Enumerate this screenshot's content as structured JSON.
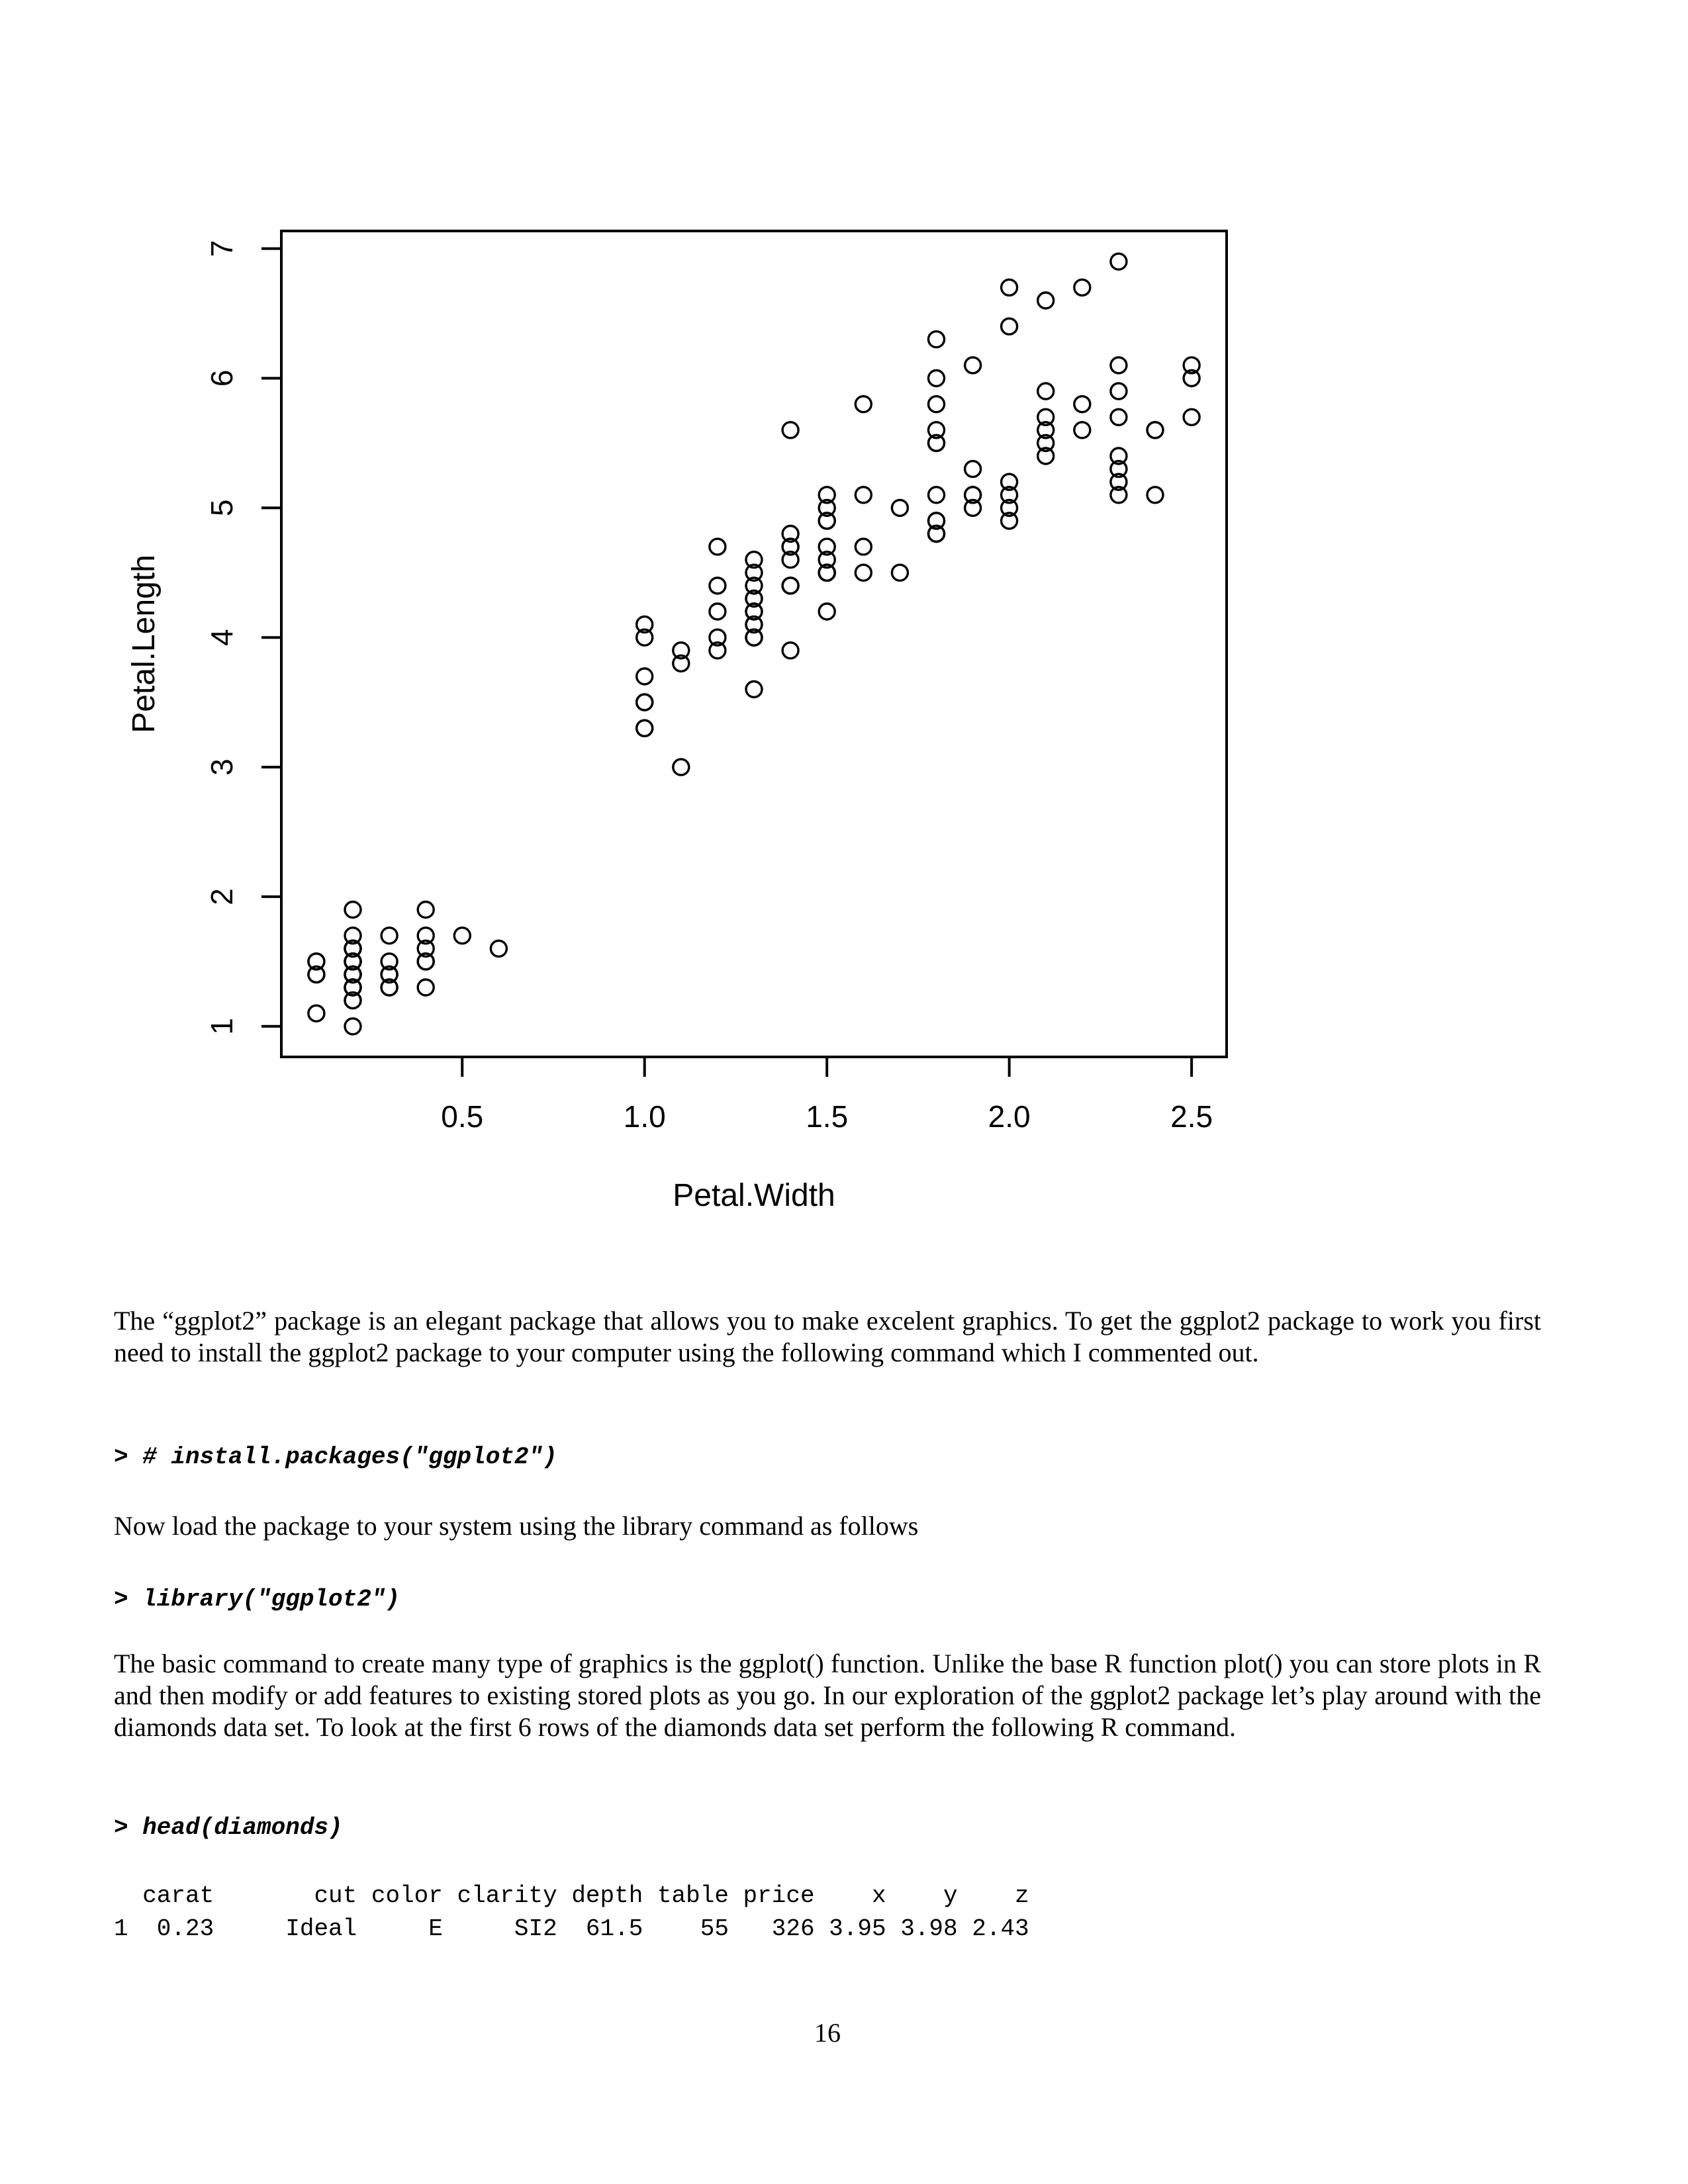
{
  "page": {
    "number": "16",
    "background": "#ffffff",
    "text_color": "#000000"
  },
  "chart_data": {
    "type": "scatter",
    "title": "",
    "xlabel": "Petal.Width",
    "ylabel": "Petal.Length",
    "x_ticks": [
      0.5,
      1.0,
      1.5,
      2.0,
      2.5
    ],
    "x_tick_labels": [
      "0.5",
      "1.0",
      "1.5",
      "2.0",
      "2.5"
    ],
    "y_ticks": [
      1,
      2,
      3,
      4,
      5,
      6,
      7
    ],
    "y_tick_labels": [
      "1",
      "2",
      "3",
      "4",
      "5",
      "6",
      "7"
    ],
    "xlim": [
      0.004,
      2.596
    ],
    "ylim": [
      0.764,
      7.136
    ],
    "grid": "off",
    "legend": "none",
    "marker": "open-circle",
    "point_color": "#000000",
    "points": [
      [
        0.2,
        1.4
      ],
      [
        0.2,
        1.4
      ],
      [
        0.2,
        1.3
      ],
      [
        0.2,
        1.5
      ],
      [
        0.2,
        1.4
      ],
      [
        0.4,
        1.7
      ],
      [
        0.3,
        1.4
      ],
      [
        0.2,
        1.5
      ],
      [
        0.2,
        1.4
      ],
      [
        0.1,
        1.5
      ],
      [
        0.2,
        1.5
      ],
      [
        0.2,
        1.6
      ],
      [
        0.1,
        1.4
      ],
      [
        0.1,
        1.1
      ],
      [
        0.2,
        1.2
      ],
      [
        0.4,
        1.5
      ],
      [
        0.4,
        1.3
      ],
      [
        0.3,
        1.4
      ],
      [
        0.3,
        1.7
      ],
      [
        0.3,
        1.5
      ],
      [
        0.2,
        1.7
      ],
      [
        0.4,
        1.5
      ],
      [
        0.2,
        1.0
      ],
      [
        0.5,
        1.7
      ],
      [
        0.2,
        1.9
      ],
      [
        0.2,
        1.6
      ],
      [
        0.4,
        1.6
      ],
      [
        0.2,
        1.5
      ],
      [
        0.2,
        1.4
      ],
      [
        0.2,
        1.6
      ],
      [
        0.2,
        1.6
      ],
      [
        0.4,
        1.5
      ],
      [
        0.1,
        1.5
      ],
      [
        0.2,
        1.4
      ],
      [
        0.2,
        1.5
      ],
      [
        0.2,
        1.2
      ],
      [
        0.2,
        1.3
      ],
      [
        0.1,
        1.4
      ],
      [
        0.2,
        1.3
      ],
      [
        0.2,
        1.5
      ],
      [
        0.3,
        1.3
      ],
      [
        0.3,
        1.3
      ],
      [
        0.2,
        1.3
      ],
      [
        0.6,
        1.6
      ],
      [
        0.4,
        1.9
      ],
      [
        0.3,
        1.4
      ],
      [
        0.2,
        1.6
      ],
      [
        0.2,
        1.4
      ],
      [
        0.2,
        1.5
      ],
      [
        0.2,
        1.4
      ],
      [
        1.4,
        4.7
      ],
      [
        1.5,
        4.5
      ],
      [
        1.5,
        4.9
      ],
      [
        1.3,
        4.0
      ],
      [
        1.5,
        4.6
      ],
      [
        1.3,
        4.5
      ],
      [
        1.6,
        4.7
      ],
      [
        1.0,
        3.3
      ],
      [
        1.3,
        4.6
      ],
      [
        1.4,
        3.9
      ],
      [
        1.0,
        3.5
      ],
      [
        1.5,
        4.2
      ],
      [
        1.0,
        4.0
      ],
      [
        1.4,
        4.7
      ],
      [
        1.3,
        3.6
      ],
      [
        1.4,
        4.4
      ],
      [
        1.5,
        4.5
      ],
      [
        1.0,
        4.1
      ],
      [
        1.5,
        4.5
      ],
      [
        1.1,
        3.9
      ],
      [
        1.8,
        4.8
      ],
      [
        1.3,
        4.0
      ],
      [
        1.5,
        4.9
      ],
      [
        1.2,
        4.7
      ],
      [
        1.3,
        4.3
      ],
      [
        1.4,
        4.4
      ],
      [
        1.4,
        4.8
      ],
      [
        1.7,
        5.0
      ],
      [
        1.5,
        4.5
      ],
      [
        1.0,
        3.5
      ],
      [
        1.1,
        3.8
      ],
      [
        1.0,
        3.7
      ],
      [
        1.2,
        3.9
      ],
      [
        1.6,
        5.1
      ],
      [
        1.5,
        4.5
      ],
      [
        1.6,
        4.5
      ],
      [
        1.5,
        4.7
      ],
      [
        1.3,
        4.4
      ],
      [
        1.3,
        4.1
      ],
      [
        1.3,
        4.0
      ],
      [
        1.2,
        4.4
      ],
      [
        1.4,
        4.6
      ],
      [
        1.2,
        4.0
      ],
      [
        1.0,
        3.3
      ],
      [
        1.3,
        4.2
      ],
      [
        1.2,
        4.2
      ],
      [
        1.3,
        4.2
      ],
      [
        1.3,
        4.3
      ],
      [
        1.1,
        3.0
      ],
      [
        1.3,
        4.1
      ],
      [
        2.5,
        6.0
      ],
      [
        1.9,
        5.1
      ],
      [
        2.1,
        5.9
      ],
      [
        1.8,
        5.6
      ],
      [
        2.2,
        5.8
      ],
      [
        2.1,
        6.6
      ],
      [
        1.7,
        4.5
      ],
      [
        1.8,
        6.3
      ],
      [
        1.8,
        5.8
      ],
      [
        2.5,
        6.1
      ],
      [
        2.0,
        5.1
      ],
      [
        1.9,
        5.3
      ],
      [
        2.1,
        5.5
      ],
      [
        2.0,
        5.0
      ],
      [
        2.4,
        5.1
      ],
      [
        2.3,
        5.3
      ],
      [
        1.8,
        5.5
      ],
      [
        2.2,
        6.7
      ],
      [
        2.3,
        6.9
      ],
      [
        1.5,
        5.0
      ],
      [
        2.3,
        5.7
      ],
      [
        2.0,
        4.9
      ],
      [
        2.0,
        6.7
      ],
      [
        1.8,
        4.9
      ],
      [
        2.1,
        5.7
      ],
      [
        1.8,
        6.0
      ],
      [
        1.8,
        4.8
      ],
      [
        1.8,
        4.9
      ],
      [
        2.1,
        5.6
      ],
      [
        1.6,
        5.8
      ],
      [
        1.9,
        6.1
      ],
      [
        2.0,
        6.4
      ],
      [
        2.2,
        5.6
      ],
      [
        1.5,
        5.1
      ],
      [
        1.4,
        5.6
      ],
      [
        2.3,
        6.1
      ],
      [
        2.4,
        5.6
      ],
      [
        1.8,
        5.5
      ],
      [
        1.8,
        4.8
      ],
      [
        2.1,
        5.4
      ],
      [
        2.4,
        5.6
      ],
      [
        2.3,
        5.1
      ],
      [
        1.9,
        5.1
      ],
      [
        2.3,
        5.9
      ],
      [
        2.5,
        5.7
      ],
      [
        2.3,
        5.2
      ],
      [
        1.9,
        5.0
      ],
      [
        2.0,
        5.2
      ],
      [
        2.3,
        5.4
      ],
      [
        1.8,
        5.1
      ]
    ]
  },
  "content": {
    "para1": "The “ggplot2” package is an elegant package that allows you to make excelent graphics. To get the ggplot2 package to work you first need to install the ggplot2 package to your computer using the following command which I commented out.",
    "code1": "> # install.packages(\"ggplot2\")",
    "para2": "Now load the package to your system using the library command as follows",
    "code2": "> library(\"ggplot2\")",
    "para3": "The basic command to create many type of graphics is the ggplot() function. Unlike the base R function plot() you can store plots in R and then modify or add features to existing stored plots as you go. In our exploration of the ggplot2 package let’s play around with the diamonds data set. To look at the first 6 rows of the diamonds data set perform the following R command.",
    "code3": "> head(diamonds)",
    "table": {
      "header": "  carat       cut color clarity depth table price    x    y    z",
      "row1": "1  0.23     Ideal     E     SI2  61.5    55   326 3.95 3.98 2.43"
    }
  }
}
